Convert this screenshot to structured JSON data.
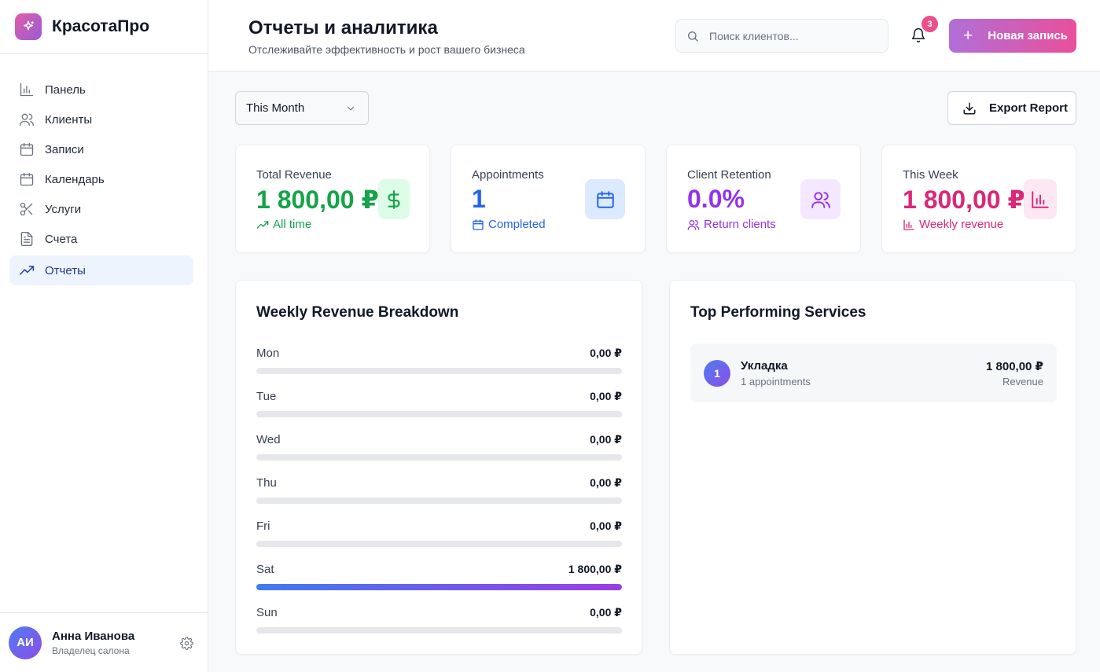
{
  "brand": {
    "name": "КрасотаПро",
    "logo_icon": "sparkles-icon"
  },
  "sidebar": {
    "items": [
      {
        "label": "Панель",
        "icon": "bar-chart-icon",
        "active": false
      },
      {
        "label": "Клиенты",
        "icon": "users-icon",
        "active": false
      },
      {
        "label": "Записи",
        "icon": "calendar-icon",
        "active": false
      },
      {
        "label": "Календарь",
        "icon": "calendar-icon",
        "active": false
      },
      {
        "label": "Услуги",
        "icon": "scissors-icon",
        "active": false
      },
      {
        "label": "Счета",
        "icon": "file-text-icon",
        "active": false
      },
      {
        "label": "Отчеты",
        "icon": "trending-up-icon",
        "active": true
      }
    ]
  },
  "user": {
    "initials": "АИ",
    "name": "Анна Иванова",
    "role": "Владелец салона"
  },
  "header": {
    "title": "Отчеты и аналитика",
    "subtitle": "Отслеживайте эффективность и рост вашего бизнеса",
    "search_placeholder": "Поиск клиентов...",
    "notifications_count": "3",
    "new_button": "Новая запись"
  },
  "toolbar": {
    "period": "This Month",
    "export": "Export Report"
  },
  "kpis": [
    {
      "label": "Total Revenue",
      "value": "1 800,00 ₽",
      "sub": "All time",
      "icon": "dollar-icon",
      "sub_icon": "trending-up-icon",
      "color": "#16a34a",
      "icon_bg": "#dcfce7"
    },
    {
      "label": "Appointments",
      "value": "1",
      "sub": "Completed",
      "icon": "calendar-icon",
      "sub_icon": "calendar-icon",
      "color": "#2563eb",
      "icon_bg": "#dbeafe"
    },
    {
      "label": "Client Retention",
      "value": "0.0%",
      "sub": "Return clients",
      "icon": "users-icon",
      "sub_icon": "users-icon",
      "color": "#9333ea",
      "icon_bg": "#f3e8ff"
    },
    {
      "label": "This Week",
      "value": "1 800,00 ₽",
      "sub": "Weekly revenue",
      "icon": "bar-chart-icon",
      "sub_icon": "bar-chart-icon",
      "color": "#db2777",
      "icon_bg": "#fce7f3"
    }
  ],
  "weekly": {
    "title": "Weekly Revenue Breakdown",
    "days": [
      {
        "day": "Mon",
        "value": "0,00 ₽",
        "share": 0
      },
      {
        "day": "Tue",
        "value": "0,00 ₽",
        "share": 0
      },
      {
        "day": "Wed",
        "value": "0,00 ₽",
        "share": 0
      },
      {
        "day": "Thu",
        "value": "0,00 ₽",
        "share": 0
      },
      {
        "day": "Fri",
        "value": "0,00 ₽",
        "share": 0
      },
      {
        "day": "Sat",
        "value": "1 800,00 ₽",
        "share": 1
      },
      {
        "day": "Sun",
        "value": "0,00 ₽",
        "share": 0
      }
    ]
  },
  "services": {
    "title": "Top Performing Services",
    "items": [
      {
        "rank": "1",
        "name": "Укладка",
        "count": "1 appointments",
        "revenue": "1 800,00 ₽",
        "revenue_label": "Revenue"
      }
    ]
  }
}
